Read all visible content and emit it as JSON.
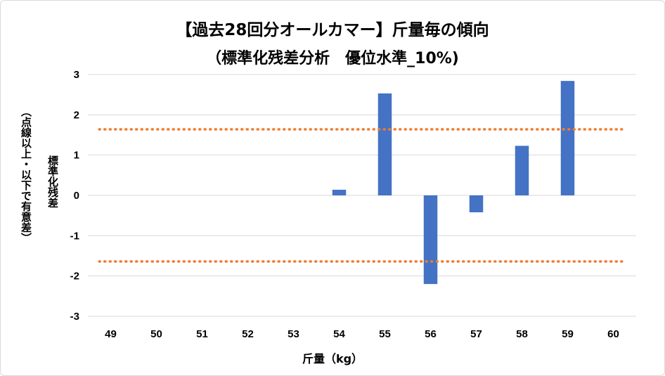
{
  "chart_data": {
    "type": "bar",
    "title": "【過去28回分オールカマー】斤量毎の傾向",
    "subtitle": "（標準化残差分析　優位水準_10%)",
    "xlabel": "斤量（kg）",
    "ylabel": "標準化残差",
    "ylabel_note": "（点線以上・以下で有意差）",
    "categories": [
      "49",
      "50",
      "51",
      "52",
      "53",
      "54",
      "55",
      "56",
      "57",
      "58",
      "59",
      "60"
    ],
    "values": [
      0,
      0,
      0,
      0,
      0,
      0.14,
      2.53,
      -2.2,
      -0.42,
      1.23,
      2.84,
      0
    ],
    "ylim": [
      -3,
      3
    ],
    "yticks": [
      3,
      2,
      1,
      0,
      -1,
      -2,
      -3
    ],
    "threshold_upper": 1.64,
    "threshold_lower": -1.64,
    "grid": true,
    "bar_color": "#4472c4",
    "threshold_color": "#ed7d31",
    "grid_color": "#d9d9d9"
  }
}
